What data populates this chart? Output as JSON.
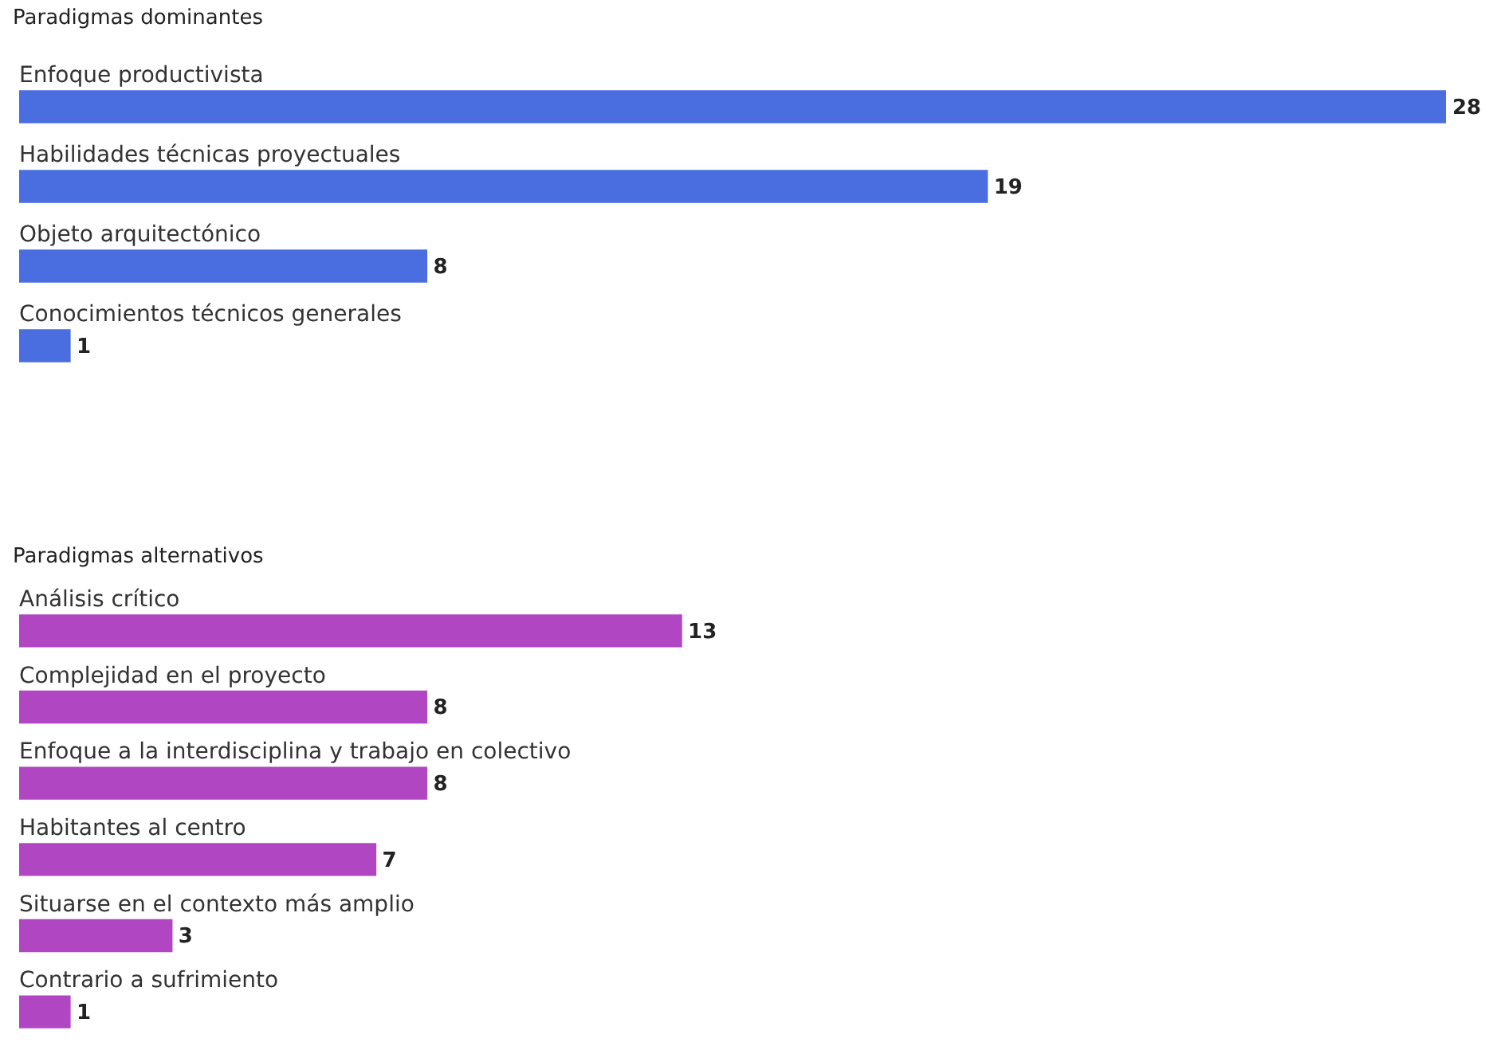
{
  "chart_data": [
    {
      "type": "bar",
      "orientation": "horizontal",
      "title": "Paradigmas dominantes",
      "categories": [
        "Enfoque productivista",
        "Habilidades técnicas proyectuales",
        "Objeto arquitectónico",
        "Conocimientos técnicos generales"
      ],
      "values": [
        28,
        19,
        8,
        1
      ],
      "color": "#4a6ee0",
      "data_labels": true
    },
    {
      "type": "bar",
      "orientation": "horizontal",
      "title": "Paradigmas alternativos",
      "categories": [
        "Análisis crítico",
        "Complejidad en el proyecto",
        "Enfoque a la interdisciplina y trabajo en colectivo",
        "Habitantes al centro",
        "Situarse en el contexto más amplio",
        "Contrario a sufrimiento"
      ],
      "values": [
        13,
        8,
        8,
        7,
        3,
        1
      ],
      "color": "#b146c2",
      "data_labels": true
    }
  ]
}
